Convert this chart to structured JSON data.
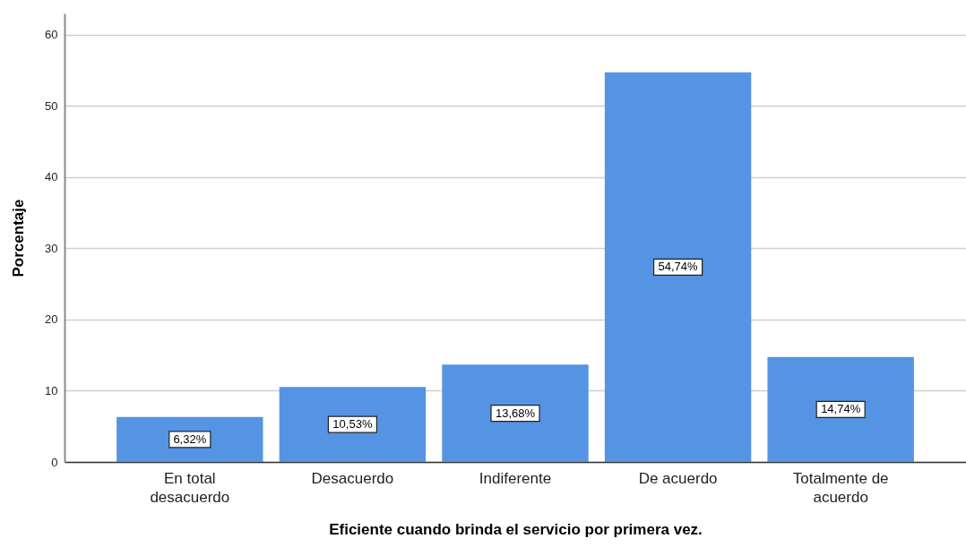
{
  "chart_data": {
    "type": "bar",
    "xlabel": "Eficiente cuando brinda el servicio por primera vez.",
    "ylabel": "Porcentaje",
    "categories": [
      "En total desacuerdo",
      "Desacuerdo",
      "Indiferente",
      "De acuerdo",
      "Totalmente de acuerdo"
    ],
    "values": [
      6.32,
      10.53,
      13.68,
      54.74,
      14.74
    ],
    "value_labels": [
      "6,32%",
      "10,53%",
      "13,68%",
      "54,74%",
      "14,74%"
    ],
    "color": "#5594e2",
    "ylim": [
      0,
      63
    ],
    "yticks": [
      0,
      10,
      20,
      30,
      40,
      50,
      60
    ],
    "grid": "y"
  }
}
